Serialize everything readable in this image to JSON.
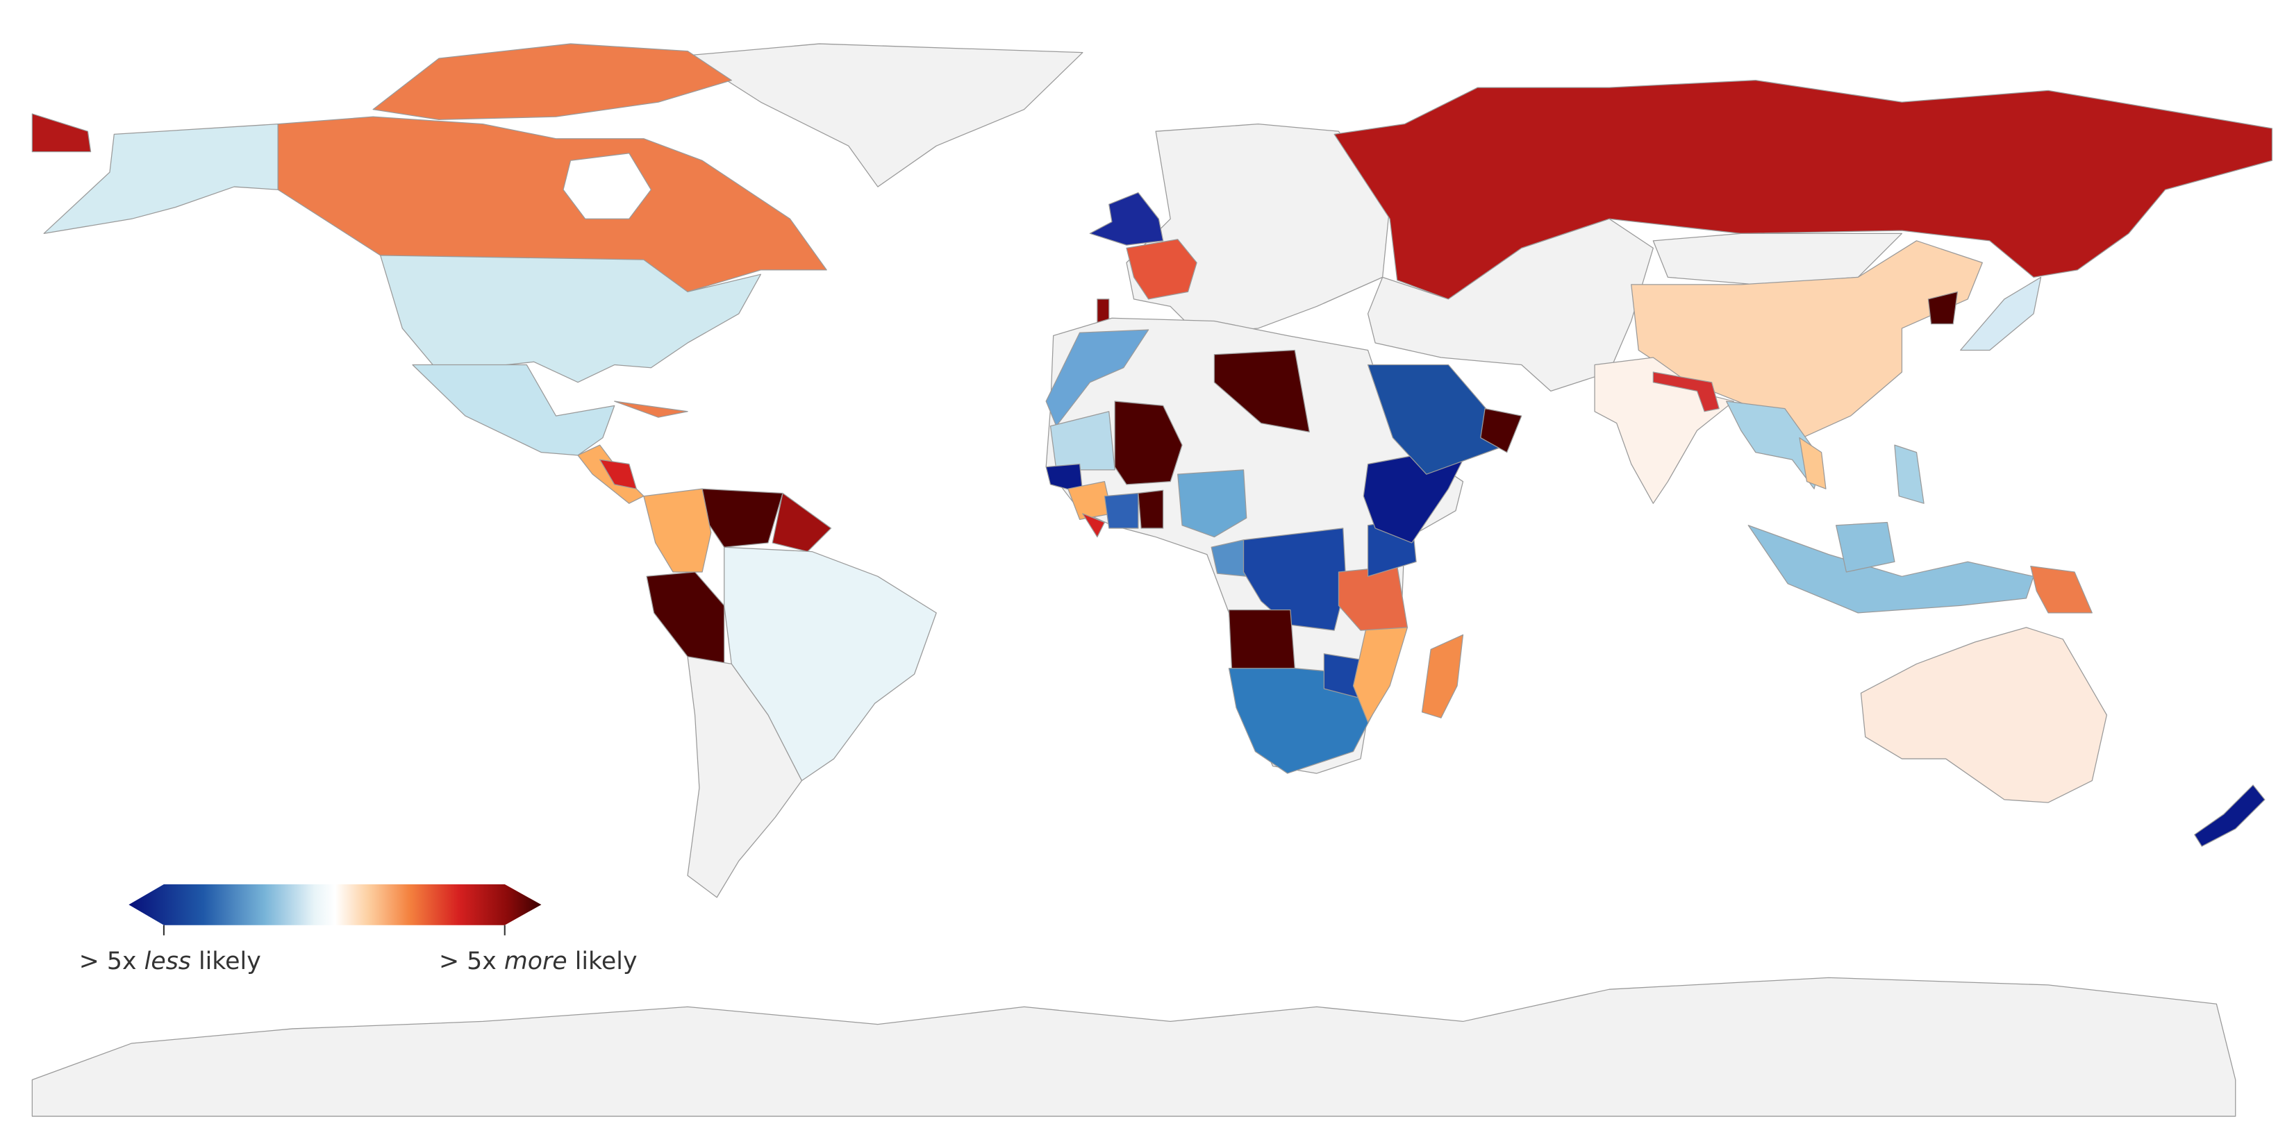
{
  "legend": {
    "low": {
      "prefix": "> 5x",
      "emphasis": "less",
      "suffix": "likely"
    },
    "high": {
      "prefix": "> 5x",
      "emphasis": "more",
      "suffix": "likely"
    }
  }
}
